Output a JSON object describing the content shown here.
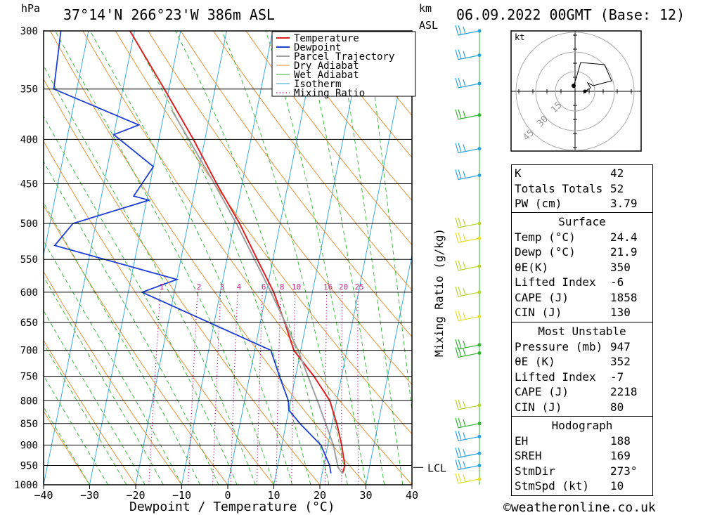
{
  "header": {
    "location": "37°14'N 266°23'W 386m ASL",
    "datetime": "06.09.2022 00GMT (Base: 12)",
    "unit_left": "hPa",
    "unit_km": "km",
    "unit_asl": "ASL"
  },
  "footer": {
    "credit": "©weatheronline.co.uk"
  },
  "chart_data": {
    "type": "line",
    "subtype": "skew-T log-P diagram",
    "xlabel": "Dewpoint / Temperature (°C)",
    "ylabel": "hPa",
    "mixing_ratio_label": "Mixing Ratio (g/kg)",
    "xlim": [
      -40,
      40
    ],
    "ylim": [
      1000,
      300
    ],
    "x_ticks": [
      "−40",
      "−30",
      "−20",
      "−10",
      "0",
      "10",
      "20",
      "30",
      "40"
    ],
    "pressure_levels": [
      300,
      350,
      400,
      450,
      500,
      550,
      600,
      650,
      700,
      750,
      800,
      850,
      900,
      950,
      1000
    ],
    "mixing_ratio_values": [
      "1",
      "2",
      "3",
      "4",
      "6",
      "8",
      "10",
      "16",
      "20",
      "25"
    ],
    "lcl_label": "LCL",
    "lcl_pressure": 955,
    "legend": [
      "Temperature",
      "Dewpoint",
      "Parcel Trajectory",
      "Dry Adiabat",
      "Wet Adiabat",
      "Isotherm",
      "Mixing Ratio"
    ],
    "colors": {
      "Temperature": "#dd2222",
      "Dewpoint": "#1f3fd6",
      "Parcel Trajectory": "#a0a0a0",
      "Dry Adiabat": "#e88a2a",
      "Wet Adiabat": "#2fb52f",
      "Isotherm": "#27a3dc",
      "Mixing Ratio": "#cc2288"
    },
    "series": [
      {
        "name": "Temperature",
        "points": [
          [
            970,
            24.4
          ],
          [
            950,
            24.6
          ],
          [
            900,
            23
          ],
          [
            850,
            21
          ],
          [
            800,
            18.5
          ],
          [
            750,
            14
          ],
          [
            700,
            8.5
          ],
          [
            650,
            5.3
          ],
          [
            600,
            1.6
          ],
          [
            550,
            -3.4
          ],
          [
            500,
            -8.8
          ],
          [
            450,
            -15.5
          ],
          [
            400,
            -22.5
          ],
          [
            350,
            -31
          ],
          [
            300,
            -41
          ]
        ]
      },
      {
        "name": "Dewpoint",
        "points": [
          [
            970,
            21.9
          ],
          [
            950,
            21.3
          ],
          [
            900,
            18.5
          ],
          [
            850,
            13
          ],
          [
            820,
            10
          ],
          [
            800,
            9.5
          ],
          [
            750,
            6.5
          ],
          [
            700,
            3.5
          ],
          [
            600,
            -27
          ],
          [
            580,
            -20
          ],
          [
            530,
            -48
          ],
          [
            500,
            -45
          ],
          [
            470,
            -29.5
          ],
          [
            465,
            -33
          ],
          [
            430,
            -30
          ],
          [
            395,
            -40
          ],
          [
            385,
            -35
          ],
          [
            350,
            -55
          ],
          [
            300,
            -56
          ]
        ]
      },
      {
        "name": "Parcel Trajectory",
        "points": [
          [
            970,
            24.4
          ],
          [
            955,
            23.2
          ],
          [
            900,
            21.2
          ],
          [
            850,
            18.6
          ],
          [
            800,
            15.8
          ],
          [
            750,
            12.7
          ],
          [
            700,
            9.4
          ],
          [
            650,
            5.4
          ],
          [
            600,
            1
          ],
          [
            550,
            -4
          ],
          [
            500,
            -9.5
          ],
          [
            450,
            -16
          ],
          [
            400,
            -23.5
          ],
          [
            370,
            -28.5
          ]
        ]
      }
    ],
    "hodograph": {
      "unit": "kt",
      "rings": [
        "15",
        "30",
        "45"
      ]
    }
  },
  "indices": [
    {
      "label": "K",
      "value": "42"
    },
    {
      "label": "Totals Totals",
      "value": "52"
    },
    {
      "label": "PW (cm)",
      "value": "3.79"
    }
  ],
  "surface": {
    "title": "Surface",
    "rows": [
      {
        "label": "Temp (°C)",
        "value": "24.4"
      },
      {
        "label": "Dewp (°C)",
        "value": "21.9"
      },
      {
        "label": "θE(K)",
        "value": "350"
      },
      {
        "label": "Lifted Index",
        "value": "-6"
      },
      {
        "label": "CAPE (J)",
        "value": "1858"
      },
      {
        "label": "CIN (J)",
        "value": "130"
      }
    ]
  },
  "most_unstable": {
    "title": "Most Unstable",
    "rows": [
      {
        "label": "Pressure (mb)",
        "value": "947"
      },
      {
        "label": "θE (K)",
        "value": "352"
      },
      {
        "label": "Lifted Index",
        "value": "-7"
      },
      {
        "label": "CAPE (J)",
        "value": "2218"
      },
      {
        "label": "CIN (J)",
        "value": "80"
      }
    ]
  },
  "hodograph_table": {
    "title": "Hodograph",
    "rows": [
      {
        "label": "EH",
        "value": "188"
      },
      {
        "label": "SREH",
        "value": "169"
      },
      {
        "label": "StmDir",
        "value": "273°"
      },
      {
        "label": "StmSpd (kt)",
        "value": "10"
      }
    ]
  }
}
